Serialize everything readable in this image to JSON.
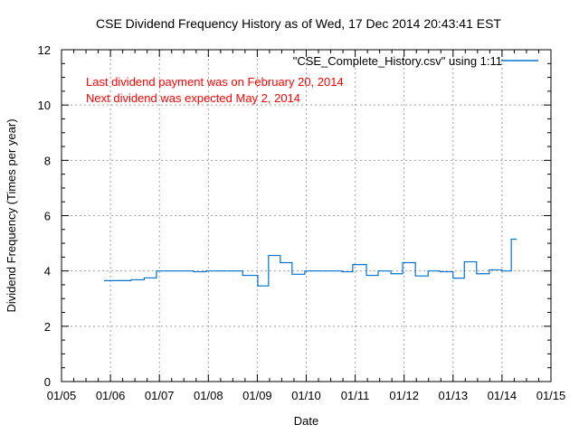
{
  "chart_data": {
    "type": "line",
    "style": "steps",
    "title": "CSE Dividend Frequency History as of Wed, 17 Dec 2014 20:43:41 EST",
    "xlabel": "Date",
    "ylabel": "Dividend Frequency (Times per year)",
    "xlim": [
      2005.0,
      2015.0
    ],
    "ylim": [
      0,
      12
    ],
    "x_ticks": [
      2005,
      2006,
      2007,
      2008,
      2009,
      2010,
      2011,
      2012,
      2013,
      2014,
      2015
    ],
    "x_tick_labels": [
      "01/05",
      "01/06",
      "01/07",
      "01/08",
      "01/09",
      "01/10",
      "01/11",
      "01/12",
      "01/13",
      "01/14",
      "01/15"
    ],
    "y_ticks": [
      0,
      2,
      4,
      6,
      8,
      10,
      12
    ],
    "y_tick_labels": [
      "0",
      "2",
      "4",
      "6",
      "8",
      "10",
      "12"
    ],
    "grid": true,
    "legend_position": "top-right",
    "series": [
      {
        "name": "\"CSE_Complete_History.csv\" using 1:11",
        "color": "#0072d0",
        "x": [
          2005.87,
          2006.42,
          2006.69,
          2006.94,
          2007.7,
          2007.95,
          2008.7,
          2009.01,
          2009.23,
          2009.47,
          2009.71,
          2009.97,
          2010.73,
          2010.95,
          2011.23,
          2011.47,
          2011.73,
          2011.97,
          2012.23,
          2012.49,
          2012.73,
          2013.0,
          2013.23,
          2013.48,
          2013.74,
          2014.0,
          2014.19,
          2014.3
        ],
        "y": [
          3.65,
          3.68,
          3.75,
          4.0,
          3.97,
          4.0,
          3.84,
          3.46,
          4.56,
          4.3,
          3.88,
          4.0,
          3.97,
          4.23,
          3.84,
          4.0,
          3.9,
          4.3,
          3.82,
          4.0,
          3.97,
          3.74,
          4.33,
          3.9,
          4.04,
          4.0,
          5.15,
          5.15
        ]
      }
    ],
    "annotations": [
      {
        "text": "Last dividend payment was on February 20, 2014",
        "color": "#ff0000"
      },
      {
        "text": "Next dividend was expected May 2, 2014",
        "color": "#ff0000"
      }
    ]
  }
}
